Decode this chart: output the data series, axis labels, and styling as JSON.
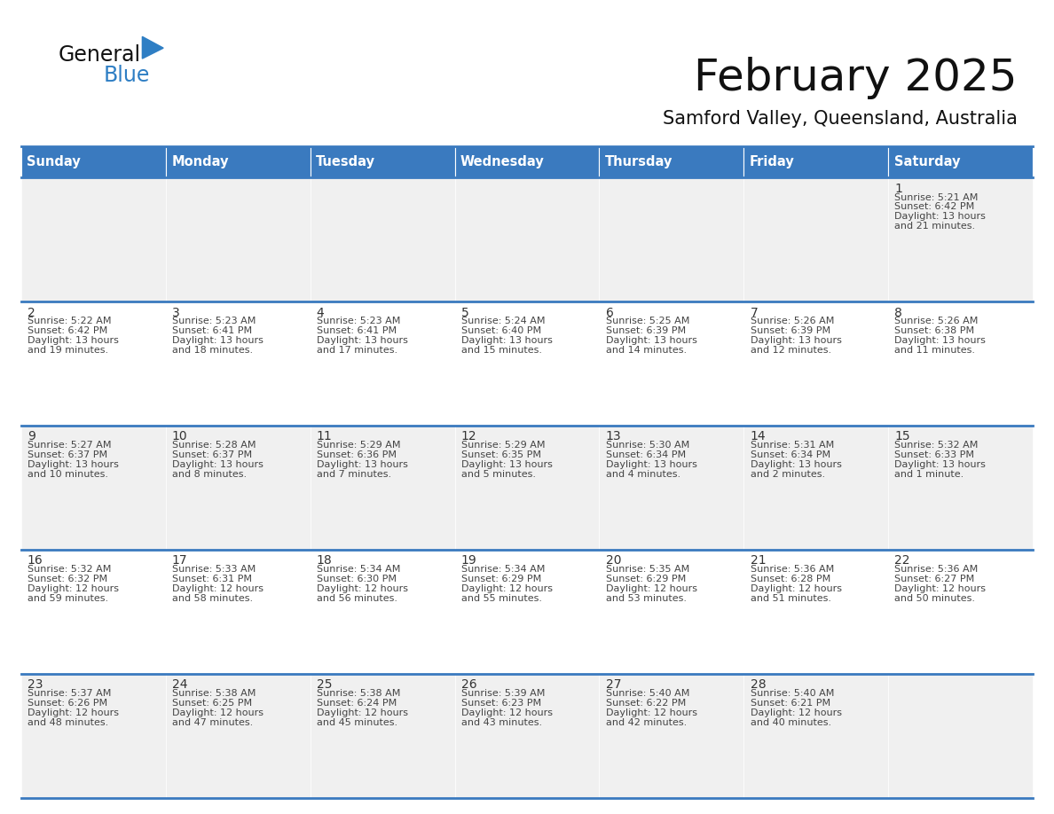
{
  "title": "February 2025",
  "subtitle": "Samford Valley, Queensland, Australia",
  "header_bg_color": "#3a7abf",
  "header_text_color": "#ffffff",
  "cell_bg_row0": "#f0f0f0",
  "cell_bg_row1": "#ffffff",
  "text_color": "#444444",
  "day_number_color": "#333333",
  "border_color": "#3a7abf",
  "days_of_week": [
    "Sunday",
    "Monday",
    "Tuesday",
    "Wednesday",
    "Thursday",
    "Friday",
    "Saturday"
  ],
  "weeks": [
    [
      {
        "day": null
      },
      {
        "day": null
      },
      {
        "day": null
      },
      {
        "day": null
      },
      {
        "day": null
      },
      {
        "day": null
      },
      {
        "day": 1,
        "sunrise": "5:21 AM",
        "sunset": "6:42 PM",
        "daylight": "13 hours",
        "daylight2": "and 21 minutes."
      }
    ],
    [
      {
        "day": 2,
        "sunrise": "5:22 AM",
        "sunset": "6:42 PM",
        "daylight": "13 hours",
        "daylight2": "and 19 minutes."
      },
      {
        "day": 3,
        "sunrise": "5:23 AM",
        "sunset": "6:41 PM",
        "daylight": "13 hours",
        "daylight2": "and 18 minutes."
      },
      {
        "day": 4,
        "sunrise": "5:23 AM",
        "sunset": "6:41 PM",
        "daylight": "13 hours",
        "daylight2": "and 17 minutes."
      },
      {
        "day": 5,
        "sunrise": "5:24 AM",
        "sunset": "6:40 PM",
        "daylight": "13 hours",
        "daylight2": "and 15 minutes."
      },
      {
        "day": 6,
        "sunrise": "5:25 AM",
        "sunset": "6:39 PM",
        "daylight": "13 hours",
        "daylight2": "and 14 minutes."
      },
      {
        "day": 7,
        "sunrise": "5:26 AM",
        "sunset": "6:39 PM",
        "daylight": "13 hours",
        "daylight2": "and 12 minutes."
      },
      {
        "day": 8,
        "sunrise": "5:26 AM",
        "sunset": "6:38 PM",
        "daylight": "13 hours",
        "daylight2": "and 11 minutes."
      }
    ],
    [
      {
        "day": 9,
        "sunrise": "5:27 AM",
        "sunset": "6:37 PM",
        "daylight": "13 hours",
        "daylight2": "and 10 minutes."
      },
      {
        "day": 10,
        "sunrise": "5:28 AM",
        "sunset": "6:37 PM",
        "daylight": "13 hours",
        "daylight2": "and 8 minutes."
      },
      {
        "day": 11,
        "sunrise": "5:29 AM",
        "sunset": "6:36 PM",
        "daylight": "13 hours",
        "daylight2": "and 7 minutes."
      },
      {
        "day": 12,
        "sunrise": "5:29 AM",
        "sunset": "6:35 PM",
        "daylight": "13 hours",
        "daylight2": "and 5 minutes."
      },
      {
        "day": 13,
        "sunrise": "5:30 AM",
        "sunset": "6:34 PM",
        "daylight": "13 hours",
        "daylight2": "and 4 minutes."
      },
      {
        "day": 14,
        "sunrise": "5:31 AM",
        "sunset": "6:34 PM",
        "daylight": "13 hours",
        "daylight2": "and 2 minutes."
      },
      {
        "day": 15,
        "sunrise": "5:32 AM",
        "sunset": "6:33 PM",
        "daylight": "13 hours",
        "daylight2": "and 1 minute."
      }
    ],
    [
      {
        "day": 16,
        "sunrise": "5:32 AM",
        "sunset": "6:32 PM",
        "daylight": "12 hours",
        "daylight2": "and 59 minutes."
      },
      {
        "day": 17,
        "sunrise": "5:33 AM",
        "sunset": "6:31 PM",
        "daylight": "12 hours",
        "daylight2": "and 58 minutes."
      },
      {
        "day": 18,
        "sunrise": "5:34 AM",
        "sunset": "6:30 PM",
        "daylight": "12 hours",
        "daylight2": "and 56 minutes."
      },
      {
        "day": 19,
        "sunrise": "5:34 AM",
        "sunset": "6:29 PM",
        "daylight": "12 hours",
        "daylight2": "and 55 minutes."
      },
      {
        "day": 20,
        "sunrise": "5:35 AM",
        "sunset": "6:29 PM",
        "daylight": "12 hours",
        "daylight2": "and 53 minutes."
      },
      {
        "day": 21,
        "sunrise": "5:36 AM",
        "sunset": "6:28 PM",
        "daylight": "12 hours",
        "daylight2": "and 51 minutes."
      },
      {
        "day": 22,
        "sunrise": "5:36 AM",
        "sunset": "6:27 PM",
        "daylight": "12 hours",
        "daylight2": "and 50 minutes."
      }
    ],
    [
      {
        "day": 23,
        "sunrise": "5:37 AM",
        "sunset": "6:26 PM",
        "daylight": "12 hours",
        "daylight2": "and 48 minutes."
      },
      {
        "day": 24,
        "sunrise": "5:38 AM",
        "sunset": "6:25 PM",
        "daylight": "12 hours",
        "daylight2": "and 47 minutes."
      },
      {
        "day": 25,
        "sunrise": "5:38 AM",
        "sunset": "6:24 PM",
        "daylight": "12 hours",
        "daylight2": "and 45 minutes."
      },
      {
        "day": 26,
        "sunrise": "5:39 AM",
        "sunset": "6:23 PM",
        "daylight": "12 hours",
        "daylight2": "and 43 minutes."
      },
      {
        "day": 27,
        "sunrise": "5:40 AM",
        "sunset": "6:22 PM",
        "daylight": "12 hours",
        "daylight2": "and 42 minutes."
      },
      {
        "day": 28,
        "sunrise": "5:40 AM",
        "sunset": "6:21 PM",
        "daylight": "12 hours",
        "daylight2": "and 40 minutes."
      },
      {
        "day": null
      }
    ]
  ]
}
